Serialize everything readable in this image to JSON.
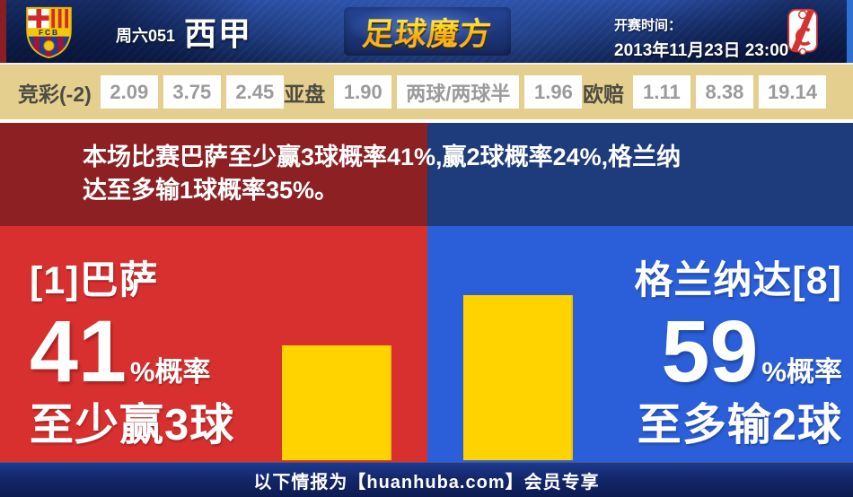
{
  "colors": {
    "home_red": "#d8302f",
    "away_blue": "#2b5fd9",
    "summary_red": "#8c2022",
    "summary_blue": "#1e3c7c",
    "bar_yellow": "#ffd300",
    "odds_tan": "#e5cf8f",
    "header_navy": "#16306e"
  },
  "header": {
    "match_no": "周六051",
    "league": "西甲",
    "site_logo": "足球魔方",
    "kickoff_label": "开赛时间：",
    "kickoff_time": "2013年11月23日 23:00",
    "home_crest_text": "FCB"
  },
  "odds": {
    "groups": [
      {
        "label": "竞彩(-2)",
        "values": [
          "2.09",
          "3.75",
          "2.45"
        ]
      },
      {
        "label": "亚盘",
        "values": [
          "1.90",
          "两球/两球半",
          "1.96"
        ]
      },
      {
        "label": "欧赔",
        "values": [
          "1.11",
          "8.38",
          "19.14"
        ]
      }
    ]
  },
  "summary": {
    "lines": [
      "本场比赛巴萨至少赢3球概率41%,赢2球概率24%,格兰纳",
      "达至多输1球概率35%。"
    ]
  },
  "panels": {
    "left": {
      "team": "[1]巴萨",
      "percent": "41",
      "suffix": "%概率",
      "outcome": "至少赢3球",
      "bar_percent": 41
    },
    "right": {
      "team": "格兰纳达[8]",
      "percent": "59",
      "suffix": "%概率",
      "outcome": "至多输2球",
      "bar_percent": 59
    }
  },
  "chart_data": {
    "type": "bar",
    "categories": [
      "巴萨 至少赢3球",
      "格兰纳达 至多输2球"
    ],
    "values": [
      41,
      59
    ],
    "unit": "%"
  },
  "footer": {
    "text": "以下情报为【huanhuba.com】会员专享"
  }
}
